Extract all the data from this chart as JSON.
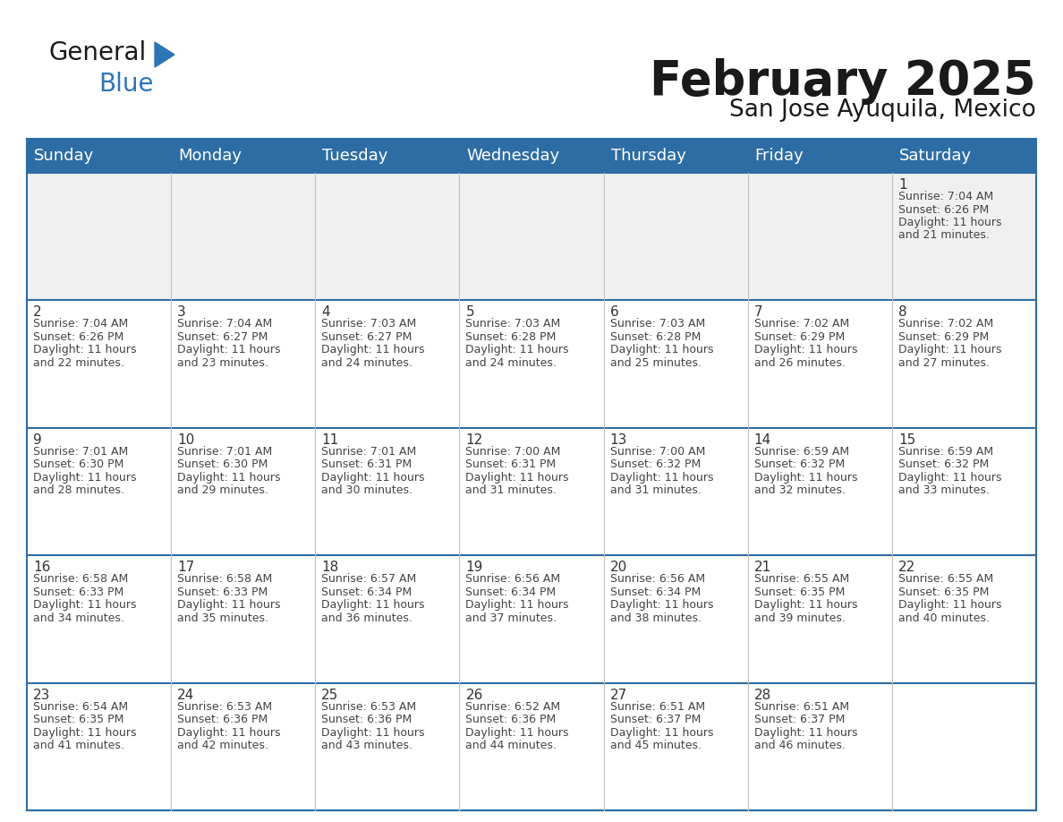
{
  "title": "February 2025",
  "subtitle": "San Jose Ayuquila, Mexico",
  "header_bg_color": "#2E6DA4",
  "header_text_color": "#FFFFFF",
  "cell_bg_color": "#FFFFFF",
  "cell_bg_row0": "#F0F0F0",
  "border_color": "#2E6DA4",
  "row_border_color": "#2E6DA4",
  "col_border_color": "#C0C0C0",
  "day_number_color": "#333333",
  "text_color": "#444444",
  "weekdays": [
    "Sunday",
    "Monday",
    "Tuesday",
    "Wednesday",
    "Thursday",
    "Friday",
    "Saturday"
  ],
  "title_fontsize": 38,
  "subtitle_fontsize": 19,
  "header_fontsize": 13,
  "day_num_fontsize": 11,
  "cell_fontsize": 9,
  "logo_color1": "#1a1a1a",
  "logo_color2": "#2E75B6",
  "logo_triangle_color": "#2E75B6",
  "days": [
    {
      "day": 1,
      "col": 6,
      "row": 0,
      "sunrise": "7:04 AM",
      "sunset": "6:26 PM",
      "daylight": "11 hours and 21 minutes."
    },
    {
      "day": 2,
      "col": 0,
      "row": 1,
      "sunrise": "7:04 AM",
      "sunset": "6:26 PM",
      "daylight": "11 hours and 22 minutes."
    },
    {
      "day": 3,
      "col": 1,
      "row": 1,
      "sunrise": "7:04 AM",
      "sunset": "6:27 PM",
      "daylight": "11 hours and 23 minutes."
    },
    {
      "day": 4,
      "col": 2,
      "row": 1,
      "sunrise": "7:03 AM",
      "sunset": "6:27 PM",
      "daylight": "11 hours and 24 minutes."
    },
    {
      "day": 5,
      "col": 3,
      "row": 1,
      "sunrise": "7:03 AM",
      "sunset": "6:28 PM",
      "daylight": "11 hours and 24 minutes."
    },
    {
      "day": 6,
      "col": 4,
      "row": 1,
      "sunrise": "7:03 AM",
      "sunset": "6:28 PM",
      "daylight": "11 hours and 25 minutes."
    },
    {
      "day": 7,
      "col": 5,
      "row": 1,
      "sunrise": "7:02 AM",
      "sunset": "6:29 PM",
      "daylight": "11 hours and 26 minutes."
    },
    {
      "day": 8,
      "col": 6,
      "row": 1,
      "sunrise": "7:02 AM",
      "sunset": "6:29 PM",
      "daylight": "11 hours and 27 minutes."
    },
    {
      "day": 9,
      "col": 0,
      "row": 2,
      "sunrise": "7:01 AM",
      "sunset": "6:30 PM",
      "daylight": "11 hours and 28 minutes."
    },
    {
      "day": 10,
      "col": 1,
      "row": 2,
      "sunrise": "7:01 AM",
      "sunset": "6:30 PM",
      "daylight": "11 hours and 29 minutes."
    },
    {
      "day": 11,
      "col": 2,
      "row": 2,
      "sunrise": "7:01 AM",
      "sunset": "6:31 PM",
      "daylight": "11 hours and 30 minutes."
    },
    {
      "day": 12,
      "col": 3,
      "row": 2,
      "sunrise": "7:00 AM",
      "sunset": "6:31 PM",
      "daylight": "11 hours and 31 minutes."
    },
    {
      "day": 13,
      "col": 4,
      "row": 2,
      "sunrise": "7:00 AM",
      "sunset": "6:32 PM",
      "daylight": "11 hours and 31 minutes."
    },
    {
      "day": 14,
      "col": 5,
      "row": 2,
      "sunrise": "6:59 AM",
      "sunset": "6:32 PM",
      "daylight": "11 hours and 32 minutes."
    },
    {
      "day": 15,
      "col": 6,
      "row": 2,
      "sunrise": "6:59 AM",
      "sunset": "6:32 PM",
      "daylight": "11 hours and 33 minutes."
    },
    {
      "day": 16,
      "col": 0,
      "row": 3,
      "sunrise": "6:58 AM",
      "sunset": "6:33 PM",
      "daylight": "11 hours and 34 minutes."
    },
    {
      "day": 17,
      "col": 1,
      "row": 3,
      "sunrise": "6:58 AM",
      "sunset": "6:33 PM",
      "daylight": "11 hours and 35 minutes."
    },
    {
      "day": 18,
      "col": 2,
      "row": 3,
      "sunrise": "6:57 AM",
      "sunset": "6:34 PM",
      "daylight": "11 hours and 36 minutes."
    },
    {
      "day": 19,
      "col": 3,
      "row": 3,
      "sunrise": "6:56 AM",
      "sunset": "6:34 PM",
      "daylight": "11 hours and 37 minutes."
    },
    {
      "day": 20,
      "col": 4,
      "row": 3,
      "sunrise": "6:56 AM",
      "sunset": "6:34 PM",
      "daylight": "11 hours and 38 minutes."
    },
    {
      "day": 21,
      "col": 5,
      "row": 3,
      "sunrise": "6:55 AM",
      "sunset": "6:35 PM",
      "daylight": "11 hours and 39 minutes."
    },
    {
      "day": 22,
      "col": 6,
      "row": 3,
      "sunrise": "6:55 AM",
      "sunset": "6:35 PM",
      "daylight": "11 hours and 40 minutes."
    },
    {
      "day": 23,
      "col": 0,
      "row": 4,
      "sunrise": "6:54 AM",
      "sunset": "6:35 PM",
      "daylight": "11 hours and 41 minutes."
    },
    {
      "day": 24,
      "col": 1,
      "row": 4,
      "sunrise": "6:53 AM",
      "sunset": "6:36 PM",
      "daylight": "11 hours and 42 minutes."
    },
    {
      "day": 25,
      "col": 2,
      "row": 4,
      "sunrise": "6:53 AM",
      "sunset": "6:36 PM",
      "daylight": "11 hours and 43 minutes."
    },
    {
      "day": 26,
      "col": 3,
      "row": 4,
      "sunrise": "6:52 AM",
      "sunset": "6:36 PM",
      "daylight": "11 hours and 44 minutes."
    },
    {
      "day": 27,
      "col": 4,
      "row": 4,
      "sunrise": "6:51 AM",
      "sunset": "6:37 PM",
      "daylight": "11 hours and 45 minutes."
    },
    {
      "day": 28,
      "col": 5,
      "row": 4,
      "sunrise": "6:51 AM",
      "sunset": "6:37 PM",
      "daylight": "11 hours and 46 minutes."
    }
  ]
}
